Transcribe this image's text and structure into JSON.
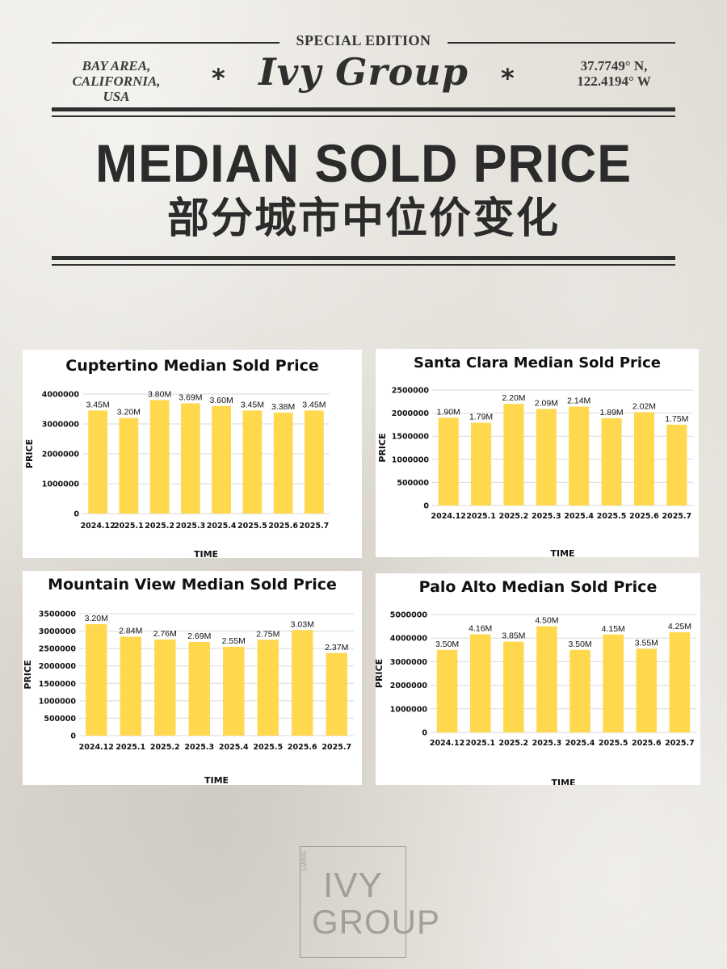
{
  "header": {
    "special_edition": "SPECIAL EDITION",
    "location_line1": "BAY AREA,",
    "location_line2": "CALIFORNIA,",
    "location_line3": "USA",
    "brand": "Ivy Group",
    "coords_line1": "37.7749° N,",
    "coords_line2": "122.4194° W",
    "star": "*",
    "headline": "MEDIAN SOLD PRICE",
    "subheadline": "部分城市中位价变化"
  },
  "colors": {
    "bar": "#ffd84d",
    "grid": "#d9d9d9",
    "rules": "#2f2f2f"
  },
  "chart_data": [
    {
      "type": "bar",
      "title": "Cuptertino Median Sold Price",
      "xlabel": "TIME",
      "ylabel": "PRICE",
      "categories": [
        "2024.12",
        "2025.1",
        "2025.2",
        "2025.3",
        "2025.4",
        "2025.5",
        "2025.6",
        "2025.7"
      ],
      "values": [
        3450000,
        3200000,
        3800000,
        3690000,
        3600000,
        3450000,
        3380000,
        3450000
      ],
      "data_labels": [
        "3.45M",
        "3.20M",
        "3.80M",
        "3.69M",
        "3.60M",
        "3.45M",
        "3.38M",
        "3.45M"
      ],
      "ylim": [
        0,
        4000000
      ],
      "yticks": [
        0,
        1000000,
        2000000,
        3000000,
        4000000
      ],
      "ytick_labels": [
        "0",
        "1000000",
        "2000000",
        "3000000",
        "4000000"
      ],
      "grid": true
    },
    {
      "type": "bar",
      "title": "Santa Clara Median Sold Price",
      "xlabel": "TIME",
      "ylabel": "PRICE",
      "categories": [
        "2024.12",
        "2025.1",
        "2025.2",
        "2025.3",
        "2025.4",
        "2025.5",
        "2025.6",
        "2025.7"
      ],
      "values": [
        1900000,
        1790000,
        2200000,
        2090000,
        2140000,
        1890000,
        2020000,
        1750000
      ],
      "data_labels": [
        "1.90M",
        "1.79M",
        "2.20M",
        "2.09M",
        "2.14M",
        "1.89M",
        "2.02M",
        "1.75M"
      ],
      "ylim": [
        0,
        2500000
      ],
      "yticks": [
        0,
        500000,
        1000000,
        1500000,
        2000000,
        2500000
      ],
      "ytick_labels": [
        "0",
        "500000",
        "1000000",
        "1500000",
        "2000000",
        "2500000"
      ],
      "grid": true
    },
    {
      "type": "bar",
      "title": "Mountain View Median Sold Price",
      "xlabel": "TIME",
      "ylabel": "PRICE",
      "categories": [
        "2024.12",
        "2025.1",
        "2025.2",
        "2025.3",
        "2025.4",
        "2025.5",
        "2025.6",
        "2025.7"
      ],
      "values": [
        3200000,
        2840000,
        2760000,
        2690000,
        2550000,
        2750000,
        3030000,
        2370000
      ],
      "data_labels": [
        "3.20M",
        "2.84M",
        "2.76M",
        "2.69M",
        "2.55M",
        "2.75M",
        "3.03M",
        "2.37M"
      ],
      "ylim": [
        0,
        3500000
      ],
      "yticks": [
        0,
        500000,
        1000000,
        1500000,
        2000000,
        2500000,
        3000000,
        3500000
      ],
      "ytick_labels": [
        "0",
        "500000",
        "1000000",
        "1500000",
        "2000000",
        "2500000",
        "3000000",
        "3500000"
      ],
      "grid": true
    },
    {
      "type": "bar",
      "title": "Palo Alto Median Sold Price",
      "xlabel": "TIME",
      "ylabel": "PRICE",
      "categories": [
        "2024.12",
        "2025.1",
        "2025.2",
        "2025.3",
        "2025.4",
        "2025.5",
        "2025.6",
        "2025.7"
      ],
      "values": [
        3500000,
        4160000,
        3850000,
        4500000,
        3500000,
        4150000,
        3550000,
        4250000
      ],
      "data_labels": [
        "3.50M",
        "4.16M",
        "3.85M",
        "4.50M",
        "3.50M",
        "4.15M",
        "3.55M",
        "4.25M"
      ],
      "ylim": [
        0,
        5000000
      ],
      "yticks": [
        0,
        1000000,
        2000000,
        3000000,
        4000000,
        5000000
      ],
      "ytick_labels": [
        "0",
        "1000000",
        "2000000",
        "3000000",
        "4000000",
        "5000000"
      ],
      "grid": true
    }
  ],
  "footer_logo": {
    "line1": "IVY",
    "line2": "GROUP",
    "vertical": "LIANG"
  }
}
